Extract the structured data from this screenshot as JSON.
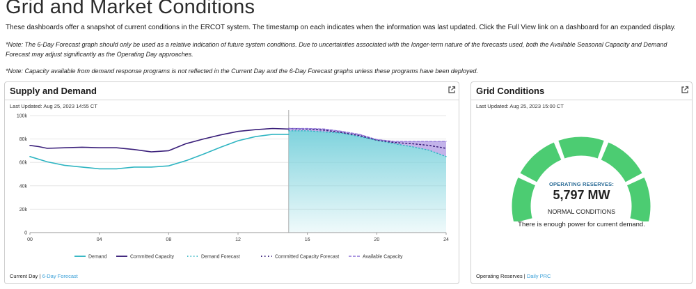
{
  "page": {
    "title": "Grid and Market Conditions",
    "intro": "These dashboards offer a snapshot of current conditions in the ERCOT system. The timestamp on each indicates when the information was last updated. Click the Full View link on a dashboard for an expanded display.",
    "note1": "*Note: The 6-Day Forecast graph should only be used as a relative indication of future system conditions. Due to uncertainties associated with the longer-term nature of the forecasts used, both the Available Seasonal Capacity and Demand Forecast may adjust significantly as the Operating Day approaches.",
    "note2": "*Note: Capacity available from demand response programs is not reflected in the Current Day and the 6-Day Forecast graphs unless these programs have been deployed."
  },
  "supply_demand": {
    "title": "Supply and Demand",
    "last_updated": "Last Updated: Aug 25, 2023 14:55 CT",
    "footer_current": "Current Day",
    "footer_sep": " | ",
    "footer_link": "6-Day Forecast"
  },
  "grid_conditions": {
    "title": "Grid Conditions",
    "last_updated": "Last Updated: Aug 25, 2023 15:00 CT",
    "reserves_label": "OPERATING RESERVES:",
    "reserves_value": "5,797 MW",
    "status_title": "NORMAL CONDITIONS",
    "status_text": "There is enough power for current demand.",
    "gauge_level": 5,
    "gauge_segments": 5,
    "gauge_color": "#4ccc72",
    "footer_label": "Operating Reserves",
    "footer_sep": " | ",
    "footer_link": "Daily PRC"
  },
  "colors": {
    "demand": "#2fb5c2",
    "committed": "#3a1f7a",
    "available_fill": "#b9a6e6",
    "forecast_fill": "#7fd3dd",
    "link": "#3aa0d8"
  },
  "chart_data": {
    "type": "line",
    "title": "Supply and Demand",
    "xlabel": "",
    "ylabel": "",
    "xlim": [
      0,
      24
    ],
    "ylim": [
      0,
      100000
    ],
    "x_ticks": [
      0,
      4,
      8,
      12,
      16,
      20,
      24
    ],
    "x_tick_labels": [
      "00",
      "04",
      "08",
      "12",
      "16",
      "20",
      "24"
    ],
    "y_ticks": [
      0,
      20000,
      40000,
      60000,
      80000,
      100000
    ],
    "y_tick_labels": [
      "0",
      "20k",
      "40k",
      "60k",
      "80k",
      "100k"
    ],
    "current_time": 14.92,
    "series": [
      {
        "name": "Demand",
        "style": "solid",
        "x": [
          0,
          1,
          2,
          3,
          4,
          5,
          6,
          7,
          8,
          9,
          10,
          11,
          12,
          13,
          14,
          14.92
        ],
        "values": [
          65000,
          60500,
          57500,
          56000,
          54500,
          54500,
          56000,
          56000,
          57000,
          61500,
          67000,
          73000,
          78500,
          82000,
          84000,
          84000
        ]
      },
      {
        "name": "Committed Capacity",
        "style": "solid",
        "x": [
          0,
          0.5,
          1,
          2,
          3,
          4,
          5,
          6,
          7,
          8,
          9,
          10,
          11,
          12,
          13,
          14,
          14.92
        ],
        "values": [
          74500,
          73500,
          72000,
          72500,
          73000,
          72500,
          72500,
          71000,
          69000,
          70000,
          76000,
          80000,
          83500,
          86500,
          88000,
          89000,
          88500
        ]
      },
      {
        "name": "Demand Forecast",
        "style": "dotted",
        "x": [
          14.92,
          16,
          17,
          18,
          19,
          20,
          21,
          22,
          23,
          24
        ],
        "values": [
          87000,
          87000,
          86000,
          85000,
          82000,
          79000,
          76000,
          73500,
          70500,
          65000
        ]
      },
      {
        "name": "Committed Capacity Forecast",
        "style": "dotted",
        "x": [
          14.92,
          16,
          17,
          18,
          19,
          20,
          21,
          22,
          23,
          24
        ],
        "values": [
          89000,
          88500,
          87500,
          85500,
          83000,
          79000,
          77000,
          76000,
          74500,
          72000
        ]
      },
      {
        "name": "Available Capacity",
        "style": "dashed",
        "x": [
          14.92,
          16,
          17,
          18,
          19,
          20,
          21,
          22,
          23,
          24
        ],
        "values": [
          89000,
          89000,
          88500,
          86500,
          84000,
          79500,
          78000,
          78000,
          78000,
          78000
        ]
      }
    ]
  }
}
